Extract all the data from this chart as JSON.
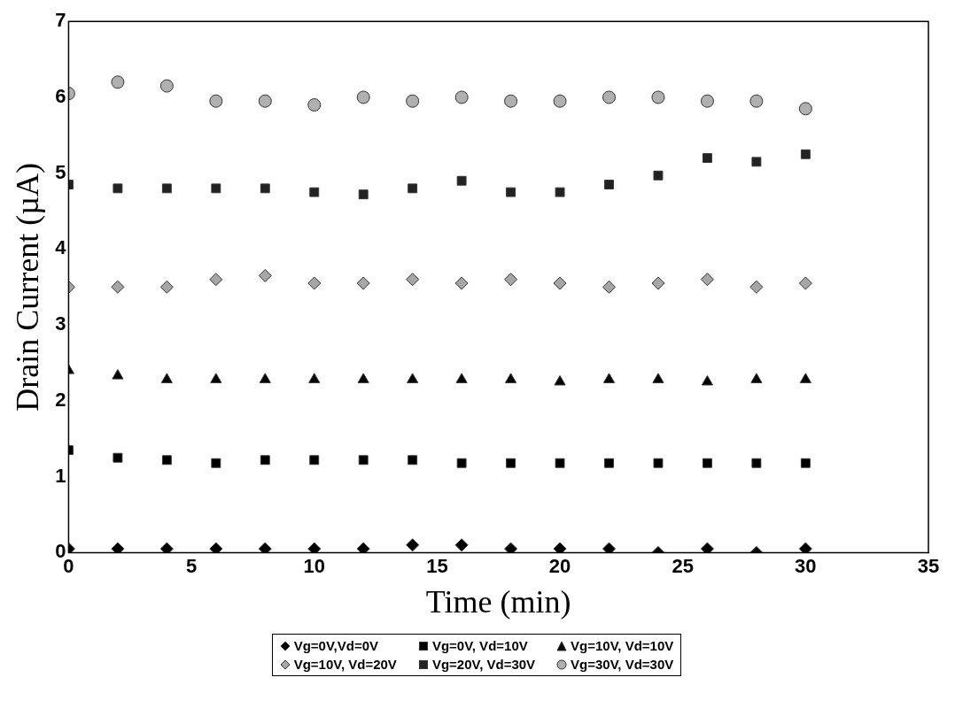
{
  "chart_data": {
    "type": "scatter",
    "xlabel": "Time (min)",
    "ylabel": "Drain Current (µA)",
    "x": [
      0,
      2,
      4,
      6,
      8,
      10,
      12,
      14,
      16,
      18,
      20,
      22,
      24,
      26,
      28,
      30
    ],
    "xlim": [
      0,
      35
    ],
    "xticks": [
      0,
      5,
      10,
      15,
      20,
      25,
      30,
      35
    ],
    "ylim": [
      0,
      7
    ],
    "yticks": [
      0,
      1,
      2,
      3,
      4,
      5,
      6,
      7
    ],
    "grid": false,
    "legend": "bottom",
    "series": [
      {
        "name": "Vg=0V,Vd=0V",
        "color": "#000000",
        "marker": "diamond",
        "values": [
          0.05,
          0.05,
          0.05,
          0.05,
          0.05,
          0.05,
          0.05,
          0.1,
          0.1,
          0.05,
          0.05,
          0.05,
          0,
          0.05,
          0,
          0.05
        ]
      },
      {
        "name": "Vg=0V, Vd=10V",
        "color": "#000000",
        "marker": "square",
        "values": [
          1.35,
          1.25,
          1.22,
          1.18,
          1.22,
          1.22,
          1.22,
          1.22,
          1.18,
          1.18,
          1.18,
          1.18,
          1.18,
          1.18,
          1.18,
          1.18
        ]
      },
      {
        "name": "Vg=10V, Vd=10V",
        "color": "#000000",
        "marker": "triangle",
        "values": [
          2.4,
          2.33,
          2.28,
          2.28,
          2.28,
          2.28,
          2.28,
          2.28,
          2.28,
          2.28,
          2.25,
          2.28,
          2.28,
          2.25,
          2.28,
          2.28
        ]
      },
      {
        "name": "Vg=10V, Vd=20V",
        "color": "#a6a6a6",
        "marker": "diamond",
        "values": [
          3.5,
          3.5,
          3.5,
          3.6,
          3.65,
          3.55,
          3.55,
          3.6,
          3.55,
          3.6,
          3.55,
          3.5,
          3.55,
          3.6,
          3.5,
          3.55
        ]
      },
      {
        "name": "Vg=20V, Vd=30V",
        "color": "#222222",
        "marker": "square",
        "values": [
          4.85,
          4.8,
          4.8,
          4.8,
          4.8,
          4.75,
          4.72,
          4.8,
          4.9,
          4.75,
          4.75,
          4.85,
          4.97,
          5.2,
          5.15,
          5.25
        ]
      },
      {
        "name": "Vg=30V, Vd=30V",
        "color": "#b0b0b0",
        "marker": "circle",
        "values": [
          6.05,
          6.2,
          6.15,
          5.95,
          5.95,
          5.9,
          6.0,
          5.95,
          6.0,
          5.95,
          5.95,
          6.0,
          6.0,
          5.95,
          5.95,
          5.85
        ]
      }
    ]
  }
}
